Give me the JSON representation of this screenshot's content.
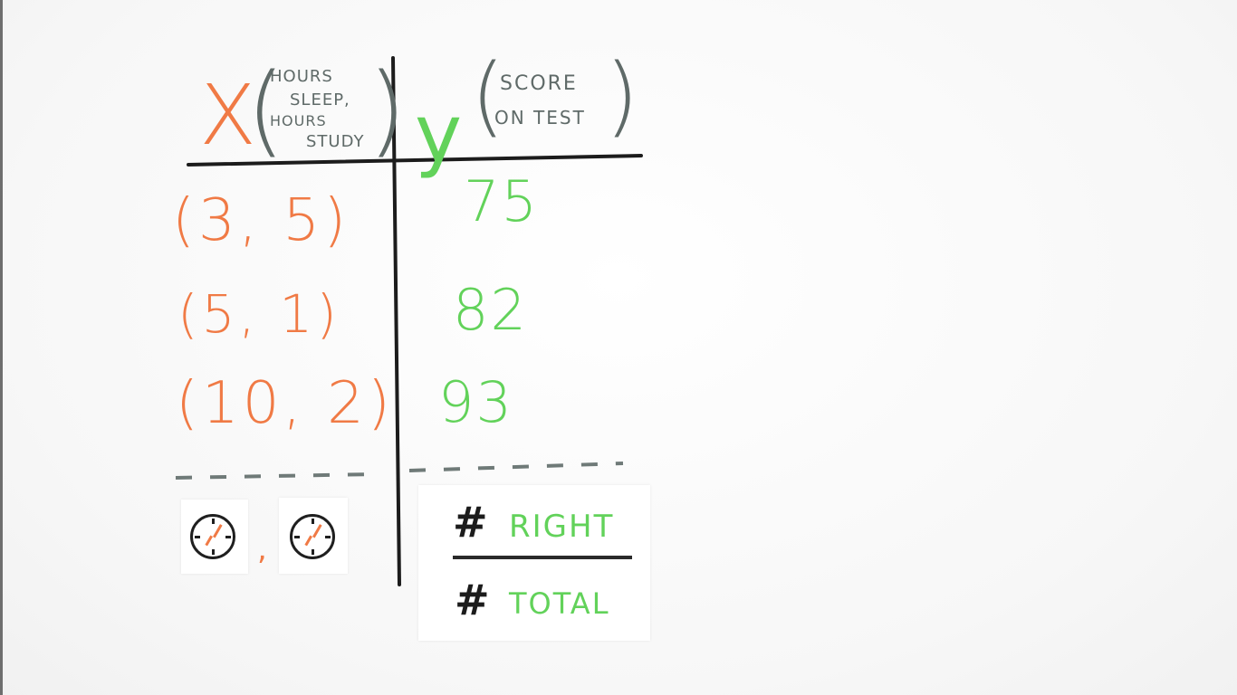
{
  "header": {
    "x_symbol": "X",
    "x_description": [
      "HOURS",
      "SLEEP,",
      "HOURS",
      "STUDY"
    ],
    "y_symbol": "y",
    "y_description": [
      "SCORE",
      "ON TEST"
    ]
  },
  "rows": [
    {
      "x": "(3, 5)",
      "y": "75"
    },
    {
      "x": "(5, 1)",
      "y": "82"
    },
    {
      "x": "(10, 2)",
      "y": "93"
    }
  ],
  "ratio": {
    "numerator_symbol": "#",
    "numerator_label": "RIGHT",
    "denominator_symbol": "#",
    "denominator_label": "TOTAL"
  },
  "colors": {
    "x_ink": "#f07a45",
    "y_ink": "#62d25a",
    "note_ink": "#5f6a68",
    "line_ink": "#1c1c1c"
  },
  "icons": [
    "clock-icon",
    "clock-icon"
  ]
}
